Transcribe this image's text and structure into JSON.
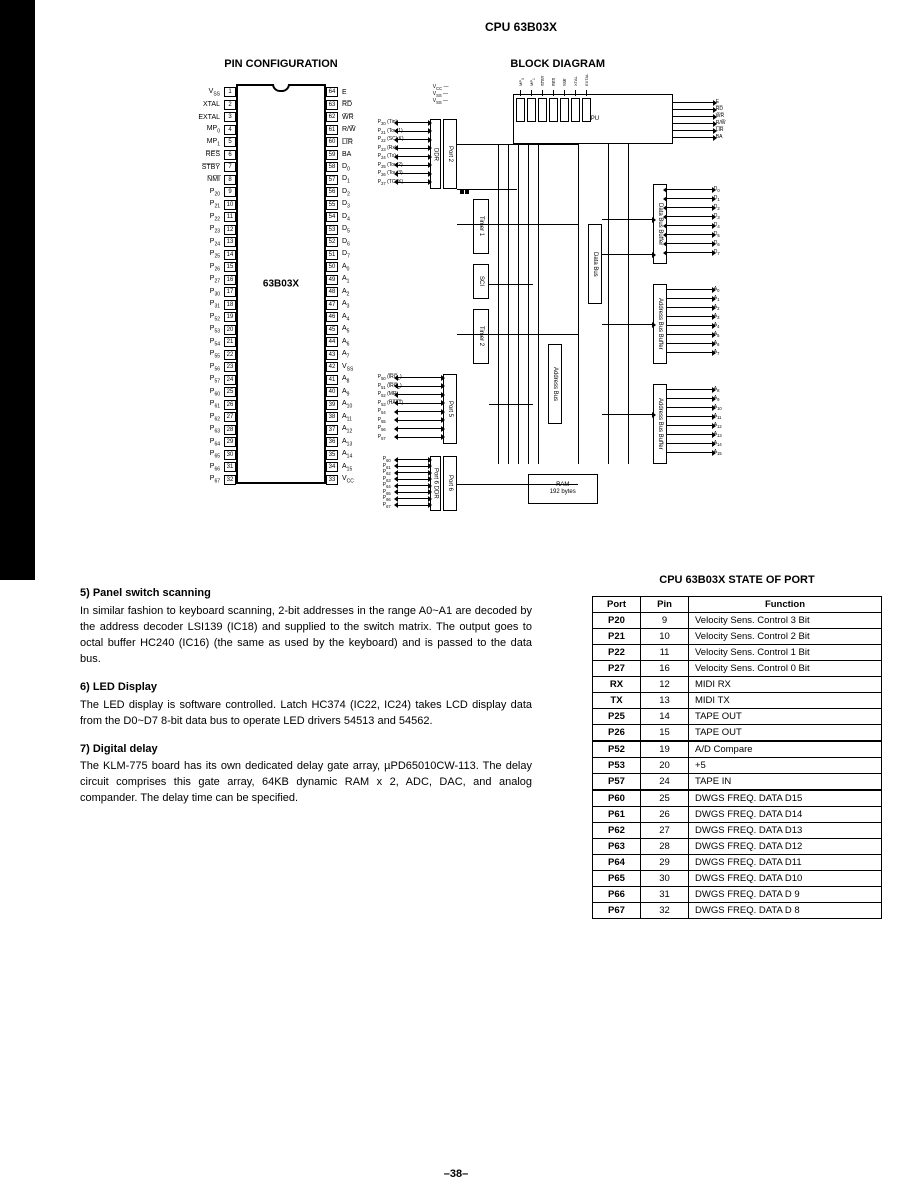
{
  "main_title": "CPU 63B03X",
  "pin_config_title": "PIN CONFIGURATION",
  "block_diagram_title": "BLOCK DIAGRAM",
  "chip_label": "63B03X",
  "left_pins": [
    {
      "num": "1",
      "lbl": "V<sub>SS</sub>"
    },
    {
      "num": "2",
      "lbl": "XTAL"
    },
    {
      "num": "3",
      "lbl": "EXTAL"
    },
    {
      "num": "4",
      "lbl": "MP<sub>0</sub>"
    },
    {
      "num": "5",
      "lbl": "MP<sub>1</sub>"
    },
    {
      "num": "6",
      "lbl": "R̅E̅S̅"
    },
    {
      "num": "7",
      "lbl": "S̅T̅B̅Y̅"
    },
    {
      "num": "8",
      "lbl": "N̅M̅I̅"
    },
    {
      "num": "9",
      "lbl": "P<sub>20</sub>"
    },
    {
      "num": "10",
      "lbl": "P<sub>21</sub>"
    },
    {
      "num": "11",
      "lbl": "P<sub>22</sub>"
    },
    {
      "num": "12",
      "lbl": "P<sub>23</sub>"
    },
    {
      "num": "13",
      "lbl": "P<sub>24</sub>"
    },
    {
      "num": "14",
      "lbl": "P<sub>25</sub>"
    },
    {
      "num": "15",
      "lbl": "P<sub>26</sub>"
    },
    {
      "num": "16",
      "lbl": "P<sub>27</sub>"
    },
    {
      "num": "17",
      "lbl": "P<sub>30</sub>"
    },
    {
      "num": "18",
      "lbl": "P<sub>31</sub>"
    },
    {
      "num": "19",
      "lbl": "P<sub>52</sub>"
    },
    {
      "num": "20",
      "lbl": "P<sub>53</sub>"
    },
    {
      "num": "21",
      "lbl": "P<sub>54</sub>"
    },
    {
      "num": "22",
      "lbl": "P<sub>55</sub>"
    },
    {
      "num": "23",
      "lbl": "P<sub>56</sub>"
    },
    {
      "num": "24",
      "lbl": "P<sub>57</sub>"
    },
    {
      "num": "25",
      "lbl": "P<sub>60</sub>"
    },
    {
      "num": "26",
      "lbl": "P<sub>61</sub>"
    },
    {
      "num": "27",
      "lbl": "P<sub>62</sub>"
    },
    {
      "num": "28",
      "lbl": "P<sub>63</sub>"
    },
    {
      "num": "29",
      "lbl": "P<sub>64</sub>"
    },
    {
      "num": "30",
      "lbl": "P<sub>65</sub>"
    },
    {
      "num": "31",
      "lbl": "P<sub>66</sub>"
    },
    {
      "num": "32",
      "lbl": "P<sub>67</sub>"
    }
  ],
  "right_pins": [
    {
      "num": "64",
      "lbl": "E"
    },
    {
      "num": "63",
      "lbl": "R̅D̅"
    },
    {
      "num": "62",
      "lbl": "W̅R̅"
    },
    {
      "num": "61",
      "lbl": "R/W̅"
    },
    {
      "num": "60",
      "lbl": "L̅I̅R̅"
    },
    {
      "num": "59",
      "lbl": "BA"
    },
    {
      "num": "58",
      "lbl": "D<sub>0</sub>"
    },
    {
      "num": "57",
      "lbl": "D<sub>1</sub>"
    },
    {
      "num": "56",
      "lbl": "D<sub>2</sub>"
    },
    {
      "num": "55",
      "lbl": "D<sub>3</sub>"
    },
    {
      "num": "54",
      "lbl": "D<sub>4</sub>"
    },
    {
      "num": "53",
      "lbl": "D<sub>5</sub>"
    },
    {
      "num": "52",
      "lbl": "D<sub>6</sub>"
    },
    {
      "num": "51",
      "lbl": "D<sub>7</sub>"
    },
    {
      "num": "50",
      "lbl": "A<sub>0</sub>"
    },
    {
      "num": "49",
      "lbl": "A<sub>1</sub>"
    },
    {
      "num": "48",
      "lbl": "A<sub>2</sub>"
    },
    {
      "num": "47",
      "lbl": "A<sub>3</sub>"
    },
    {
      "num": "46",
      "lbl": "A<sub>4</sub>"
    },
    {
      "num": "45",
      "lbl": "A<sub>5</sub>"
    },
    {
      "num": "44",
      "lbl": "A<sub>6</sub>"
    },
    {
      "num": "43",
      "lbl": "A<sub>7</sub>"
    },
    {
      "num": "42",
      "lbl": "V<sub>SS</sub>"
    },
    {
      "num": "41",
      "lbl": "A<sub>8</sub>"
    },
    {
      "num": "40",
      "lbl": "A<sub>9</sub>"
    },
    {
      "num": "39",
      "lbl": "A<sub>10</sub>"
    },
    {
      "num": "38",
      "lbl": "A<sub>11</sub>"
    },
    {
      "num": "37",
      "lbl": "A<sub>12</sub>"
    },
    {
      "num": "36",
      "lbl": "A<sub>13</sub>"
    },
    {
      "num": "35",
      "lbl": "A<sub>14</sub>"
    },
    {
      "num": "34",
      "lbl": "A<sub>15</sub>"
    },
    {
      "num": "33",
      "lbl": "V<sub>CC</sub>"
    }
  ],
  "bd": {
    "cpu": "CPU",
    "port2": "Port 2",
    "port2ddr": "DDR",
    "timer1": "Timer 1",
    "sci": "SCI",
    "timer2": "Timer 2",
    "port5": "Port 5",
    "port6": "Port 6",
    "port6ddr": "Port 6 DDR",
    "addrbus": "Address Bus",
    "databus": "Data Bus",
    "databuf": "Data Bus Buffer",
    "addrbuf1": "Address Bus Buffer",
    "addrbuf2": "Address Bus Buffer",
    "ram": "RAM\n192 bytes",
    "top_lbls": [
      "V<sub>CC</sub>",
      "V<sub>SS</sub>",
      "V<sub>SS</sub>"
    ],
    "top_signals": [
      "MP<sub>0</sub>",
      "MP<sub>1</sub>",
      "S̅T̅B̅Y̅",
      "R̅E̅S̅",
      "N̅M̅I̅",
      "XTAL",
      "EXTAL"
    ],
    "left_p2": [
      "P<sub>20</sub> (Tin)",
      "P<sub>21</sub> (Tout1)",
      "P<sub>22</sub> (SCLK)",
      "P<sub>23</sub> (Rx)",
      "P<sub>24</sub> (Tx)",
      "P<sub>25</sub> (Tout2)",
      "P<sub>26</sub> (Tout3)",
      "P<sub>27</sub> (TCLK)"
    ],
    "left_p5": [
      "P<sub>50</sub> (I̅R̅Q̅<sub>1</sub>)",
      "P<sub>51</sub> (I̅R̅Q̅<sub>2</sub>)",
      "P<sub>52</sub> (MR)",
      "P<sub>53</sub> (H̅A̅L̅T̅)",
      "P<sub>54</sub>",
      "P<sub>55</sub>",
      "P<sub>56</sub>",
      "P<sub>57</sub>"
    ],
    "left_p6": [
      "P<sub>60</sub>",
      "P<sub>61</sub>",
      "P<sub>62</sub>",
      "P<sub>63</sub>",
      "P<sub>64</sub>",
      "P<sub>65</sub>",
      "P<sub>66</sub>",
      "P<sub>67</sub>"
    ],
    "right_ctrl": [
      "E",
      "R̅D̅",
      "W̅R̅",
      "R/W̅",
      "L̅I̅R̅",
      "BA"
    ],
    "right_d": [
      "D<sub>0</sub>",
      "D<sub>1</sub>",
      "D<sub>2</sub>",
      "D<sub>3</sub>",
      "D<sub>4</sub>",
      "D<sub>5</sub>",
      "D<sub>6</sub>",
      "D<sub>7</sub>"
    ],
    "right_a_low": [
      "A<sub>0</sub>",
      "A<sub>1</sub>",
      "A<sub>2</sub>",
      "A<sub>3</sub>",
      "A<sub>4</sub>",
      "A<sub>5</sub>",
      "A<sub>6</sub>",
      "A<sub>7</sub>"
    ],
    "right_a_high": [
      "A<sub>8</sub>",
      "A<sub>9</sub>",
      "A<sub>10</sub>",
      "A<sub>11</sub>",
      "A<sub>12</sub>",
      "A<sub>13</sub>",
      "A<sub>14</sub>",
      "A<sub>15</sub>"
    ]
  },
  "sections": [
    {
      "head": "5) Panel switch scanning",
      "body": "In similar fashion to keyboard scanning, 2-bit addresses in the range A0~A1 are decoded by the address decoder LSI139 (IC18) and supplied to the switch matrix. The output goes to octal buffer HC240 (IC16) (the same as used by the keyboard) and is passed to the data bus."
    },
    {
      "head": "6) LED Display",
      "body": "The LED display is software controlled. Latch HC374 (IC22, IC24) takes LCD display data from the D0~D7 8-bit data bus to operate LED drivers 54513 and 54562."
    },
    {
      "head": "7) Digital delay",
      "body": "The KLM-775 board has its own dedicated delay gate array, µPD65010CW-113. The delay circuit comprises this gate array, 64KB dynamic RAM x 2, ADC, DAC, and analog compander. The delay time can be specified."
    }
  ],
  "table_title": "CPU 63B03X STATE OF PORT",
  "table_cols": [
    "Port",
    "Pin",
    "Function"
  ],
  "table_groups": [
    [
      {
        "port": "P20",
        "pin": "9",
        "fn": "Velocity Sens. Control 3 Bit"
      },
      {
        "port": "P21",
        "pin": "10",
        "fn": "Velocity Sens. Control 2 Bit"
      },
      {
        "port": "P22",
        "pin": "11",
        "fn": "Velocity Sens. Control 1 Bit"
      },
      {
        "port": "P27",
        "pin": "16",
        "fn": "Velocity Sens. Control 0 Bit"
      },
      {
        "port": "RX",
        "pin": "12",
        "fn": "MIDI RX"
      },
      {
        "port": "TX",
        "pin": "13",
        "fn": "MIDI TX"
      },
      {
        "port": "P25",
        "pin": "14",
        "fn": "TAPE OUT"
      },
      {
        "port": "P26",
        "pin": "15",
        "fn": "TAPE OUT"
      }
    ],
    [
      {
        "port": "P52",
        "pin": "19",
        "fn": "A/D Compare"
      },
      {
        "port": "P53",
        "pin": "20",
        "fn": "+5"
      },
      {
        "port": "P57",
        "pin": "24",
        "fn": "TAPE IN"
      }
    ],
    [
      {
        "port": "P60",
        "pin": "25",
        "fn": "DWGS FREQ. DATA D15"
      },
      {
        "port": "P61",
        "pin": "26",
        "fn": "DWGS FREQ. DATA D14"
      },
      {
        "port": "P62",
        "pin": "27",
        "fn": "DWGS FREQ. DATA D13"
      },
      {
        "port": "P63",
        "pin": "28",
        "fn": "DWGS FREQ. DATA D12"
      },
      {
        "port": "P64",
        "pin": "29",
        "fn": "DWGS FREQ. DATA D11"
      },
      {
        "port": "P65",
        "pin": "30",
        "fn": "DWGS FREQ. DATA D10"
      },
      {
        "port": "P66",
        "pin": "31",
        "fn": "DWGS FREQ. DATA D 9"
      },
      {
        "port": "P67",
        "pin": "32",
        "fn": "DWGS FREQ. DATA D 8"
      }
    ]
  ],
  "footer": "–38–"
}
